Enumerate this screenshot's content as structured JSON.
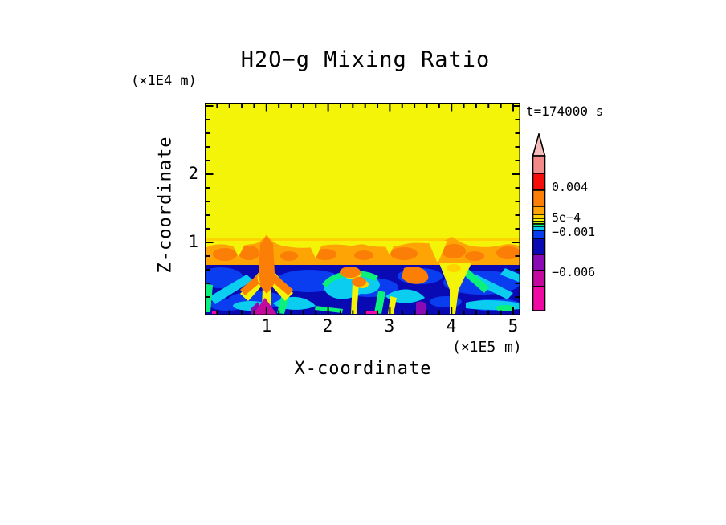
{
  "figure": {
    "title": "H2O−g Mixing Ratio",
    "time_label": "t=174000 s",
    "background": "#FFFFFF"
  },
  "axes": {
    "x": {
      "title": "X-coordinate",
      "unit": "(×1E5 m)",
      "tick_labels": [
        "1",
        "2",
        "3",
        "4",
        "5"
      ]
    },
    "z": {
      "title": "Z-coordinate",
      "unit": "(×1E4 m)",
      "tick_labels": [
        "2",
        "1"
      ]
    }
  },
  "colorbar": {
    "tip_color": "#F6BCBC",
    "labels": [
      {
        "text": "0.004"
      },
      {
        "text": "5e−4"
      },
      {
        "text": "−0.001"
      },
      {
        "text": "−0.006"
      }
    ],
    "segments": [
      {
        "name": "salmon",
        "color": "#F28A8A",
        "height": 22
      },
      {
        "name": "red",
        "color": "#F80D0D",
        "height": 21
      },
      {
        "name": "orange",
        "color": "#FB7E07",
        "height": 20
      },
      {
        "name": "amber",
        "color": "#FFA405",
        "height": 10
      },
      {
        "name": "gold",
        "color": "#FFD300",
        "height": 5
      },
      {
        "name": "yellow",
        "color": "#F4F409",
        "height": 4
      },
      {
        "name": "chartreuse",
        "color": "#B8F00A",
        "height": 3
      },
      {
        "name": "green",
        "color": "#0AF07A",
        "height": 3
      },
      {
        "name": "cyan",
        "color": "#0ACDF0",
        "height": 5
      },
      {
        "name": "blue",
        "color": "#0A3CF0",
        "height": 10
      },
      {
        "name": "navy",
        "color": "#0A0AB4",
        "height": 20
      },
      {
        "name": "purple",
        "color": "#8A0AB4",
        "height": 20
      },
      {
        "name": "magenta-purple",
        "color": "#C40A9E",
        "height": 20
      },
      {
        "name": "magenta",
        "color": "#F00AA4",
        "height": 30
      }
    ]
  },
  "palette": {
    "Y": "#F4F409",
    "GO": "#FFD300",
    "A": "#FFA405",
    "O": "#FB7E07",
    "C": "#0ACDF0",
    "G": "#0AF07A",
    "B": "#0A3CF0",
    "N": "#0A0AB4",
    "P": "#8A0AB4",
    "MP": "#C40A9E",
    "M": "#F00AA4"
  },
  "chart_data": {
    "type": "heatmap",
    "title": "H2O−g Mixing Ratio",
    "xlabel": "X-coordinate",
    "x_unit": "×1E5 m",
    "ylabel": "Z-coordinate",
    "y_unit": "×1E4 m",
    "x_ticks": [
      1,
      2,
      3,
      4,
      5
    ],
    "y_ticks": [
      1,
      2
    ],
    "xlim": [
      0,
      5.1
    ],
    "ylim": [
      0,
      3.05
    ],
    "minor_tick_step": 0.2,
    "grid": false,
    "time_annotation": "t=174000 s",
    "colorbar_labels": [
      "0.004",
      "5e−4",
      "−0.001",
      "−0.006"
    ],
    "colorbar_orientation": "vertical-right-arrow-top",
    "regions": [
      {
        "description": "uniform yellow upper layer, mixing ratio ≈ 5e−4 to 0.001",
        "x_range": [
          0,
          5.1
        ],
        "z_range": [
          1.05,
          3.05
        ]
      },
      {
        "description": "orange entrainment band with darker orange patches and yellow notches, values ≈ 0.002–0.004",
        "x_range": [
          0,
          5.1
        ],
        "z_range": [
          0.75,
          1.05
        ]
      },
      {
        "description": "turbulent lower layer: navy/blue background (≈ −0.001 to −0.006) laced with cyan and green filaments, yellow–orange convective plumes near x ≈ 1.0, 2.4, 3.4 and 4.0, and magenta/purple minima near the surface at x ≈ 1.0 and 3.5",
        "x_range": [
          0,
          5.1
        ],
        "z_range": [
          0,
          0.75
        ]
      }
    ]
  }
}
